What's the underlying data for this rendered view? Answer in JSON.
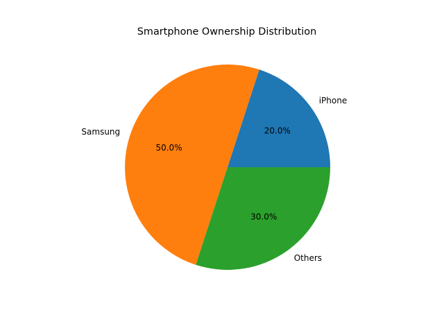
{
  "chart_data": {
    "type": "pie",
    "title": "Smartphone Ownership Distribution",
    "slices": [
      {
        "label": "iPhone",
        "value": 20.0,
        "pct_label": "20.0%",
        "color": "#1f77b4"
      },
      {
        "label": "Samsung",
        "value": 50.0,
        "pct_label": "50.0%",
        "color": "#ff7f0e"
      },
      {
        "label": "Others",
        "value": 30.0,
        "pct_label": "30.0%",
        "color": "#2ca02c"
      }
    ],
    "start_angle_deg": 0,
    "direction": "counterclockwise"
  }
}
